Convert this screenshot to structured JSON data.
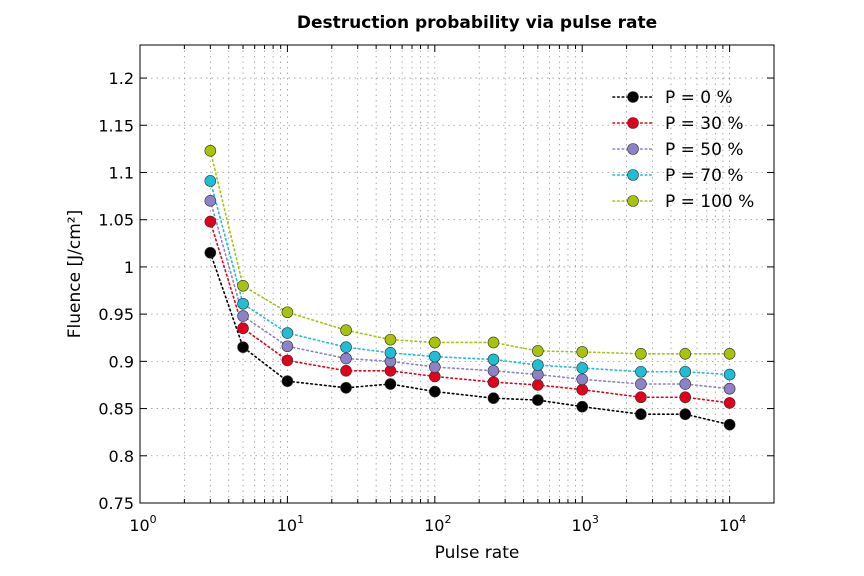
{
  "chart_data": {
    "type": "line",
    "title": "Destruction probability via pulse rate",
    "xlabel": "Pulse rate",
    "ylabel": "Fluence [J/cm²]",
    "xscale": "log",
    "xlim": [
      1,
      20000
    ],
    "ylim": [
      0.75,
      1.235
    ],
    "grid": true,
    "legend_position": "top-right",
    "x": [
      3,
      5,
      10,
      25,
      50,
      100,
      250,
      500,
      1000,
      2500,
      5000,
      10000
    ],
    "x_ticks": [
      1,
      10,
      100,
      1000,
      10000
    ],
    "x_tick_labels": [
      {
        "base": "10",
        "exp": "0"
      },
      {
        "base": "10",
        "exp": "1"
      },
      {
        "base": "10",
        "exp": "2"
      },
      {
        "base": "10",
        "exp": "3"
      },
      {
        "base": "10",
        "exp": "4"
      }
    ],
    "y_ticks": [
      0.75,
      0.8,
      0.85,
      0.9,
      0.95,
      1.0,
      1.05,
      1.1,
      1.15,
      1.2
    ],
    "y_tick_labels": [
      "0.75",
      "0.8",
      "0.85",
      "0.9",
      "0.95",
      "1",
      "1.05",
      "1.1",
      "1.15",
      "1.2"
    ],
    "series": [
      {
        "name": "P = 0 %",
        "color": "#000000",
        "values": [
          1.015,
          0.915,
          0.879,
          0.872,
          0.876,
          0.868,
          0.861,
          0.859,
          0.852,
          0.844,
          0.844,
          0.833
        ]
      },
      {
        "name": "P = 30 %",
        "color": "#e2001a",
        "values": [
          1.048,
          0.935,
          0.901,
          0.89,
          0.89,
          0.884,
          0.878,
          0.875,
          0.87,
          0.862,
          0.862,
          0.856
        ]
      },
      {
        "name": "P = 50 %",
        "color": "#8c82c8",
        "values": [
          1.07,
          0.948,
          0.916,
          0.903,
          0.9,
          0.894,
          0.89,
          0.886,
          0.881,
          0.876,
          0.876,
          0.871
        ]
      },
      {
        "name": "P = 70 %",
        "color": "#1ebed7",
        "values": [
          1.091,
          0.961,
          0.93,
          0.915,
          0.909,
          0.905,
          0.902,
          0.896,
          0.893,
          0.889,
          0.889,
          0.886
        ]
      },
      {
        "name": "P = 100 %",
        "color": "#a8c30a",
        "values": [
          1.123,
          0.98,
          0.952,
          0.933,
          0.923,
          0.92,
          0.92,
          0.911,
          0.91,
          0.908,
          0.908,
          0.908
        ]
      }
    ]
  }
}
